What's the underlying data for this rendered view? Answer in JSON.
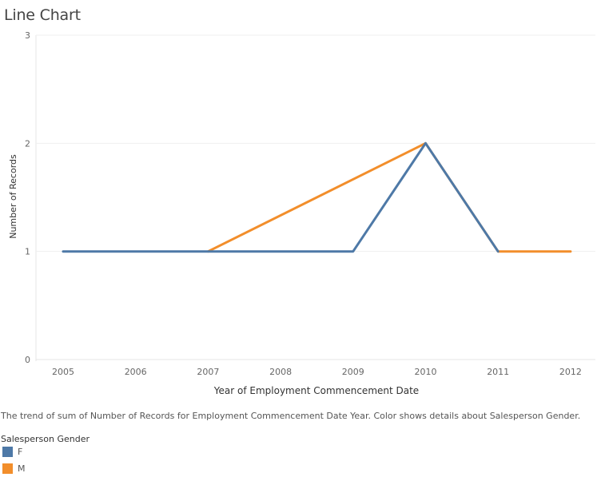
{
  "title": "Line Chart",
  "caption": "The trend of sum of Number of Records for Employment Commencement Date Year.  Color shows details about Salesperson Gender.",
  "legend": {
    "title": "Salesperson Gender",
    "items": [
      {
        "label": "F",
        "color": "#4e79a7"
      },
      {
        "label": "M",
        "color": "#f28e2b"
      }
    ]
  },
  "chart_data": {
    "type": "line",
    "xlabel": "Year of Employment Commencement Date",
    "ylabel": "Number of Records",
    "categories": [
      "2005",
      "2006",
      "2007",
      "2008",
      "2009",
      "2010",
      "2011",
      "2012"
    ],
    "ylim": [
      0,
      3
    ],
    "yticks": [
      0,
      1,
      2,
      3
    ],
    "grid": true,
    "legend_position": "bottom-left",
    "series": [
      {
        "name": "F",
        "color": "#4e79a7",
        "points": [
          {
            "x": "2005",
            "y": 1
          },
          {
            "x": "2009",
            "y": 1
          },
          {
            "x": "2010",
            "y": 2
          },
          {
            "x": "2011",
            "y": 1
          }
        ]
      },
      {
        "name": "M",
        "color": "#f28e2b",
        "points": [
          {
            "x": "2007",
            "y": 1
          },
          {
            "x": "2010",
            "y": 2
          },
          {
            "x": "2011",
            "y": 1
          },
          {
            "x": "2012",
            "y": 1
          }
        ]
      }
    ]
  }
}
